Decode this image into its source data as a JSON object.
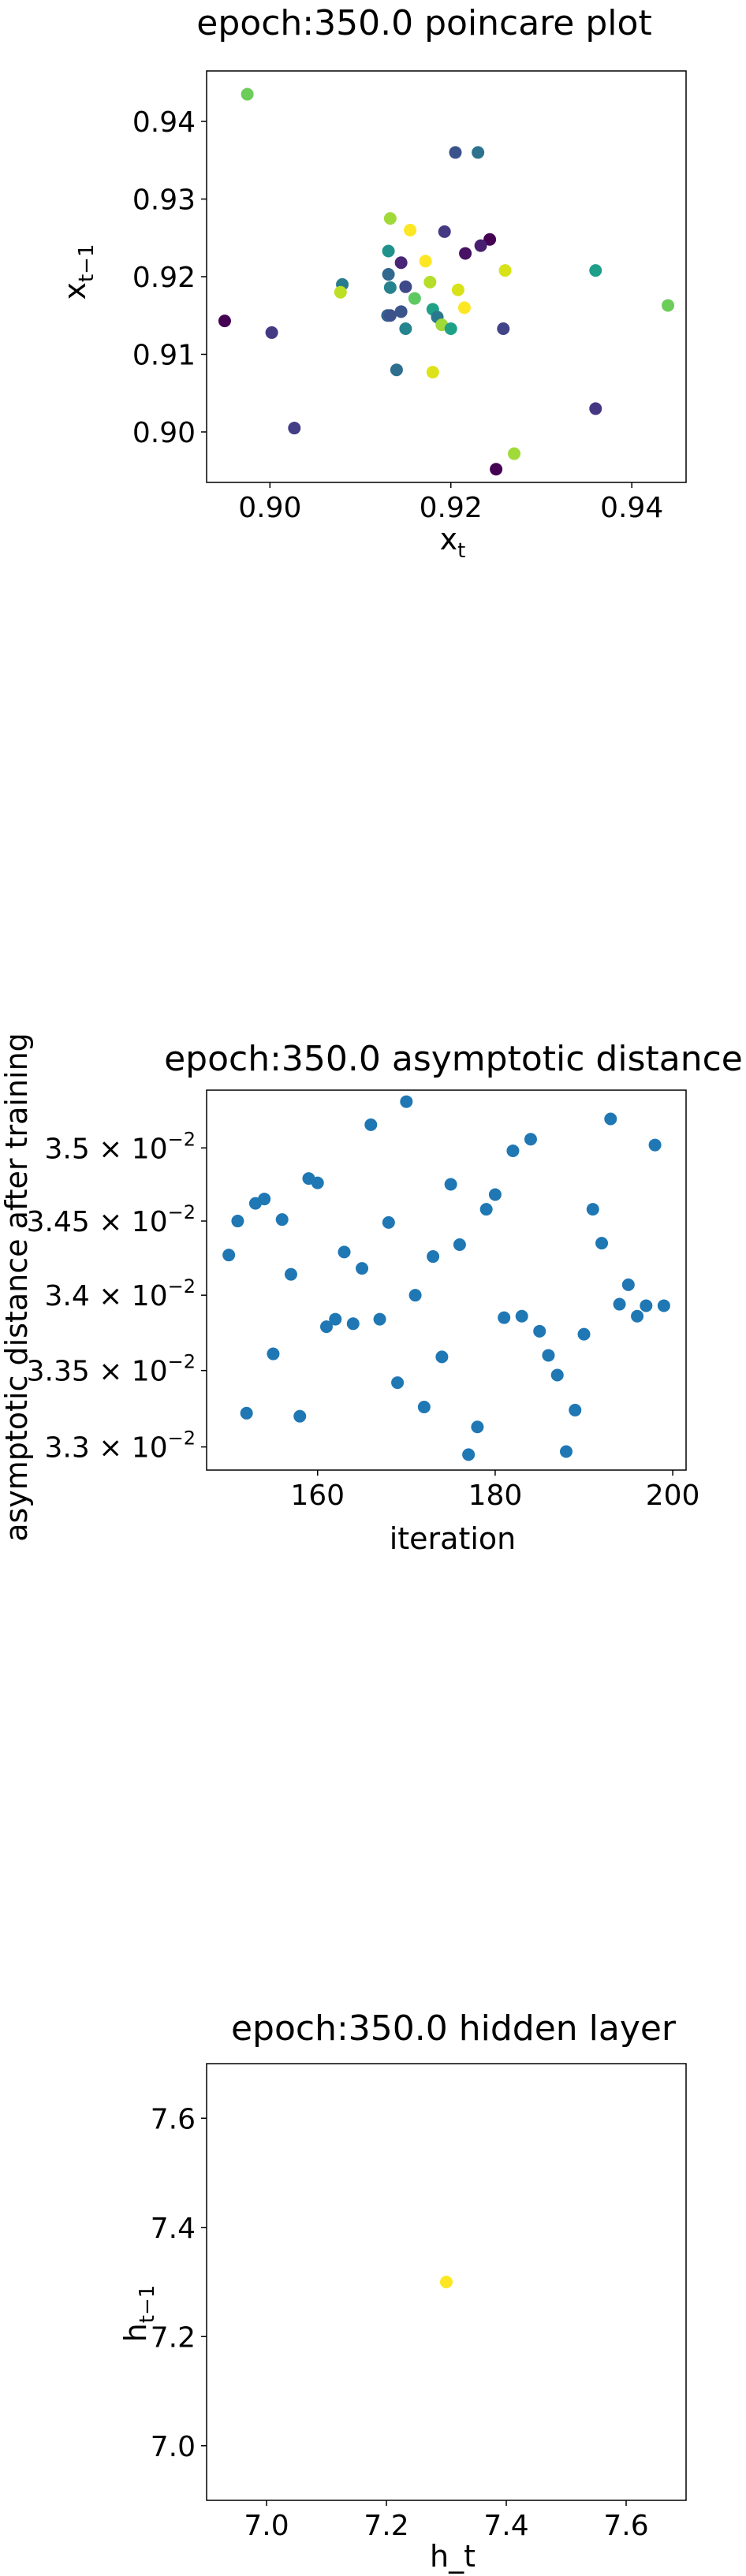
{
  "chart_data": [
    {
      "type": "scatter",
      "title": "epoch:350.0 poincare plot",
      "xlabel": "x_t",
      "ylabel": "x_{t−1}",
      "xlim": [
        0.893,
        0.946
      ],
      "ylim": [
        0.8935,
        0.9465
      ],
      "xticks": [
        "0.90",
        "0.92",
        "0.94"
      ],
      "yticks": [
        "0.90",
        "0.91",
        "0.92",
        "0.93",
        "0.94"
      ],
      "colormap": "viridis",
      "points": [
        {
          "x": 0.8975,
          "y": 0.9435,
          "c": "#6ccd5a"
        },
        {
          "x": 0.9205,
          "y": 0.936,
          "c": "#3b528b"
        },
        {
          "x": 0.923,
          "y": 0.936,
          "c": "#2c728e"
        },
        {
          "x": 0.9133,
          "y": 0.9275,
          "c": "#a0da39"
        },
        {
          "x": 0.9155,
          "y": 0.926,
          "c": "#fde725"
        },
        {
          "x": 0.9193,
          "y": 0.9258,
          "c": "#443983"
        },
        {
          "x": 0.9243,
          "y": 0.9248,
          "c": "#440154"
        },
        {
          "x": 0.9233,
          "y": 0.924,
          "c": "#481f70"
        },
        {
          "x": 0.9216,
          "y": 0.923,
          "c": "#471164"
        },
        {
          "x": 0.9131,
          "y": 0.9233,
          "c": "#21918c"
        },
        {
          "x": 0.9172,
          "y": 0.922,
          "c": "#fde725"
        },
        {
          "x": 0.9145,
          "y": 0.9218,
          "c": "#482576"
        },
        {
          "x": 0.9131,
          "y": 0.9203,
          "c": "#31688e"
        },
        {
          "x": 0.926,
          "y": 0.9208,
          "c": "#d8e219"
        },
        {
          "x": 0.936,
          "y": 0.9208,
          "c": "#1f9e89"
        },
        {
          "x": 0.895,
          "y": 0.9143,
          "c": "#440154"
        },
        {
          "x": 0.908,
          "y": 0.919,
          "c": "#287c8e"
        },
        {
          "x": 0.9078,
          "y": 0.918,
          "c": "#bddf26"
        },
        {
          "x": 0.9133,
          "y": 0.9186,
          "c": "#26828e"
        },
        {
          "x": 0.915,
          "y": 0.9187,
          "c": "#3e4989"
        },
        {
          "x": 0.9177,
          "y": 0.9193,
          "c": "#b5de2b"
        },
        {
          "x": 0.9208,
          "y": 0.9183,
          "c": "#d8e219"
        },
        {
          "x": 0.916,
          "y": 0.9172,
          "c": "#5ec962"
        },
        {
          "x": 0.944,
          "y": 0.9163,
          "c": "#6ccd5a"
        },
        {
          "x": 0.9215,
          "y": 0.916,
          "c": "#fde725"
        },
        {
          "x": 0.9145,
          "y": 0.9155,
          "c": "#3a548c"
        },
        {
          "x": 0.918,
          "y": 0.9158,
          "c": "#1fa188"
        },
        {
          "x": 0.913,
          "y": 0.915,
          "c": "#33638d"
        },
        {
          "x": 0.9133,
          "y": 0.915,
          "c": "#3b528b"
        },
        {
          "x": 0.9185,
          "y": 0.9148,
          "c": "#2a788e"
        },
        {
          "x": 0.919,
          "y": 0.9138,
          "c": "#a0da39"
        },
        {
          "x": 0.915,
          "y": 0.9133,
          "c": "#25848e"
        },
        {
          "x": 0.92,
          "y": 0.9133,
          "c": "#1fa188"
        },
        {
          "x": 0.9258,
          "y": 0.9133,
          "c": "#414487"
        },
        {
          "x": 0.9002,
          "y": 0.9128,
          "c": "#443983"
        },
        {
          "x": 0.914,
          "y": 0.908,
          "c": "#2e6e8e"
        },
        {
          "x": 0.918,
          "y": 0.9077,
          "c": "#dde318"
        },
        {
          "x": 0.936,
          "y": 0.903,
          "c": "#453781"
        },
        {
          "x": 0.9027,
          "y": 0.9005,
          "c": "#433e85"
        },
        {
          "x": 0.927,
          "y": 0.8972,
          "c": "#a0da39"
        },
        {
          "x": 0.925,
          "y": 0.8952,
          "c": "#440154"
        }
      ]
    },
    {
      "type": "scatter",
      "title": "epoch:350.0 asymptotic distance",
      "xlabel": "iteration",
      "ylabel": "asymptotic distance after training",
      "yscale": "log",
      "xlim": [
        147.5,
        201.5
      ],
      "ylim": [
        0.03285,
        0.0354
      ],
      "xticks": [
        "160",
        "180",
        "200"
      ],
      "yticks": [
        {
          "value": 0.033,
          "mantissa": "3.3",
          "exp": "-2"
        },
        {
          "value": 0.0335,
          "mantissa": "3.35",
          "exp": "-2"
        },
        {
          "value": 0.034,
          "mantissa": "3.4",
          "exp": "-2"
        },
        {
          "value": 0.0345,
          "mantissa": "3.45",
          "exp": "-2"
        },
        {
          "value": 0.035,
          "mantissa": "3.5",
          "exp": "-2"
        }
      ],
      "color": "#1f77b4",
      "points": [
        {
          "x": 150,
          "y": 0.03427
        },
        {
          "x": 151,
          "y": 0.0345
        },
        {
          "x": 152,
          "y": 0.03322
        },
        {
          "x": 153,
          "y": 0.03462
        },
        {
          "x": 154,
          "y": 0.03465
        },
        {
          "x": 155,
          "y": 0.03361
        },
        {
          "x": 156,
          "y": 0.03451
        },
        {
          "x": 157,
          "y": 0.03414
        },
        {
          "x": 158,
          "y": 0.0332
        },
        {
          "x": 159,
          "y": 0.03479
        },
        {
          "x": 160,
          "y": 0.03476
        },
        {
          "x": 161,
          "y": 0.03379
        },
        {
          "x": 162,
          "y": 0.03384
        },
        {
          "x": 163,
          "y": 0.03429
        },
        {
          "x": 164,
          "y": 0.03381
        },
        {
          "x": 165,
          "y": 0.03418
        },
        {
          "x": 166,
          "y": 0.03516
        },
        {
          "x": 167,
          "y": 0.03384
        },
        {
          "x": 168,
          "y": 0.03449
        },
        {
          "x": 169,
          "y": 0.03342
        },
        {
          "x": 170,
          "y": 0.03532
        },
        {
          "x": 171,
          "y": 0.034
        },
        {
          "x": 172,
          "y": 0.03326
        },
        {
          "x": 173,
          "y": 0.03426
        },
        {
          "x": 174,
          "y": 0.03359
        },
        {
          "x": 175,
          "y": 0.03475
        },
        {
          "x": 176,
          "y": 0.03434
        },
        {
          "x": 177,
          "y": 0.03295
        },
        {
          "x": 178,
          "y": 0.03313
        },
        {
          "x": 179,
          "y": 0.03458
        },
        {
          "x": 180,
          "y": 0.03468
        },
        {
          "x": 181,
          "y": 0.03385
        },
        {
          "x": 182,
          "y": 0.03498
        },
        {
          "x": 183,
          "y": 0.03386
        },
        {
          "x": 184,
          "y": 0.03506
        },
        {
          "x": 185,
          "y": 0.03376
        },
        {
          "x": 186,
          "y": 0.0336
        },
        {
          "x": 187,
          "y": 0.03347
        },
        {
          "x": 188,
          "y": 0.03297
        },
        {
          "x": 189,
          "y": 0.03324
        },
        {
          "x": 190,
          "y": 0.03374
        },
        {
          "x": 191,
          "y": 0.03458
        },
        {
          "x": 192,
          "y": 0.03435
        },
        {
          "x": 193,
          "y": 0.0352
        },
        {
          "x": 194,
          "y": 0.03394
        },
        {
          "x": 195,
          "y": 0.03407
        },
        {
          "x": 196,
          "y": 0.03386
        },
        {
          "x": 197,
          "y": 0.03393
        },
        {
          "x": 198,
          "y": 0.03502
        },
        {
          "x": 199,
          "y": 0.03393
        }
      ]
    },
    {
      "type": "scatter",
      "title": "epoch:350.0 hidden layer",
      "xlabel": "h_t",
      "ylabel": "h_{t−1}",
      "xlim": [
        6.9,
        7.7
      ],
      "ylim": [
        6.9,
        7.7
      ],
      "xticks": [
        "7.0",
        "7.2",
        "7.4",
        "7.6"
      ],
      "yticks": [
        "7.0",
        "7.2",
        "7.4",
        "7.6"
      ],
      "points": [
        {
          "x": 7.3,
          "y": 7.3,
          "c": "#fde725"
        }
      ]
    }
  ]
}
